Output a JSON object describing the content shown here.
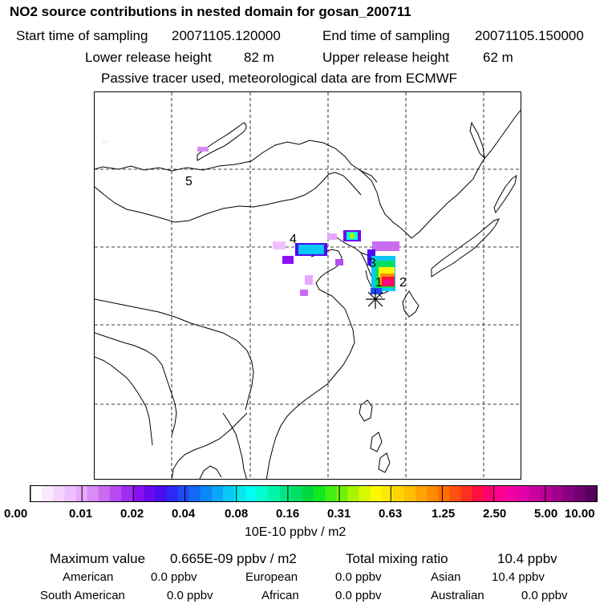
{
  "title": "NO2 source contributions in nested domain for gosan_200711",
  "header": {
    "start_label": "Start time of sampling",
    "start_value": "20071105.120000",
    "end_label": "End time of sampling",
    "end_value": "20071105.150000",
    "lower_label": "Lower release height",
    "lower_value": "82 m",
    "upper_label": "Upper release height",
    "upper_value": "62 m",
    "note": "Passive tracer used, meteorological data are from ECMWF"
  },
  "map": {
    "region_labels": [
      "1",
      "2",
      "3",
      "4",
      "5"
    ],
    "receptor_marker": "asterisk"
  },
  "colorbar": {
    "ticks": [
      "0.00",
      "0.01",
      "0.02",
      "0.04",
      "0.08",
      "0.16",
      "0.31",
      "0.63",
      "1.25",
      "2.50",
      "5.00",
      "10.00"
    ],
    "unit": "10E-10 ppbv / m2",
    "colors": [
      "#ffffff",
      "#fbe9ff",
      "#f5d3ff",
      "#efc0ff",
      "#e7a9ff",
      "#d98cf5",
      "#c96cf0",
      "#b64bf0",
      "#a12cf2",
      "#8a10f3",
      "#6a08f0",
      "#4a0cf0",
      "#2d28f5",
      "#1f4af8",
      "#1468f8",
      "#0a86f8",
      "#0aa6f8",
      "#08c8f5",
      "#05e8f0",
      "#00fff0",
      "#00ffcc",
      "#00f5a8",
      "#00e884",
      "#00e060",
      "#00d840",
      "#10e820",
      "#40f010",
      "#70f008",
      "#a8f400",
      "#d8f800",
      "#fff800",
      "#ffe800",
      "#ffd400",
      "#ffbe00",
      "#ffa400",
      "#ff8a00",
      "#ff6e00",
      "#ff5010",
      "#ff3020",
      "#ff1040",
      "#ff0070",
      "#ff0090",
      "#f000a0",
      "#e000a8",
      "#cc00a0",
      "#b80098",
      "#a0008c",
      "#880080",
      "#700070",
      "#580060"
    ]
  },
  "stats": {
    "max_label": "Maximum value",
    "max_value": "0.665E-09 ppbv / m2",
    "total_label": "Total mixing ratio",
    "total_value": "10.4 ppbv",
    "american_label": "American",
    "american_value": "0.0 ppbv",
    "european_label": "European",
    "european_value": "0.0 ppbv",
    "asian_label": "Asian",
    "asian_value": "10.4 ppbv",
    "southam_label": "South American",
    "southam_value": "0.0 ppbv",
    "african_label": "African",
    "african_value": "0.0 ppbv",
    "australian_label": "Australian",
    "australian_value": "0.0 ppbv"
  }
}
